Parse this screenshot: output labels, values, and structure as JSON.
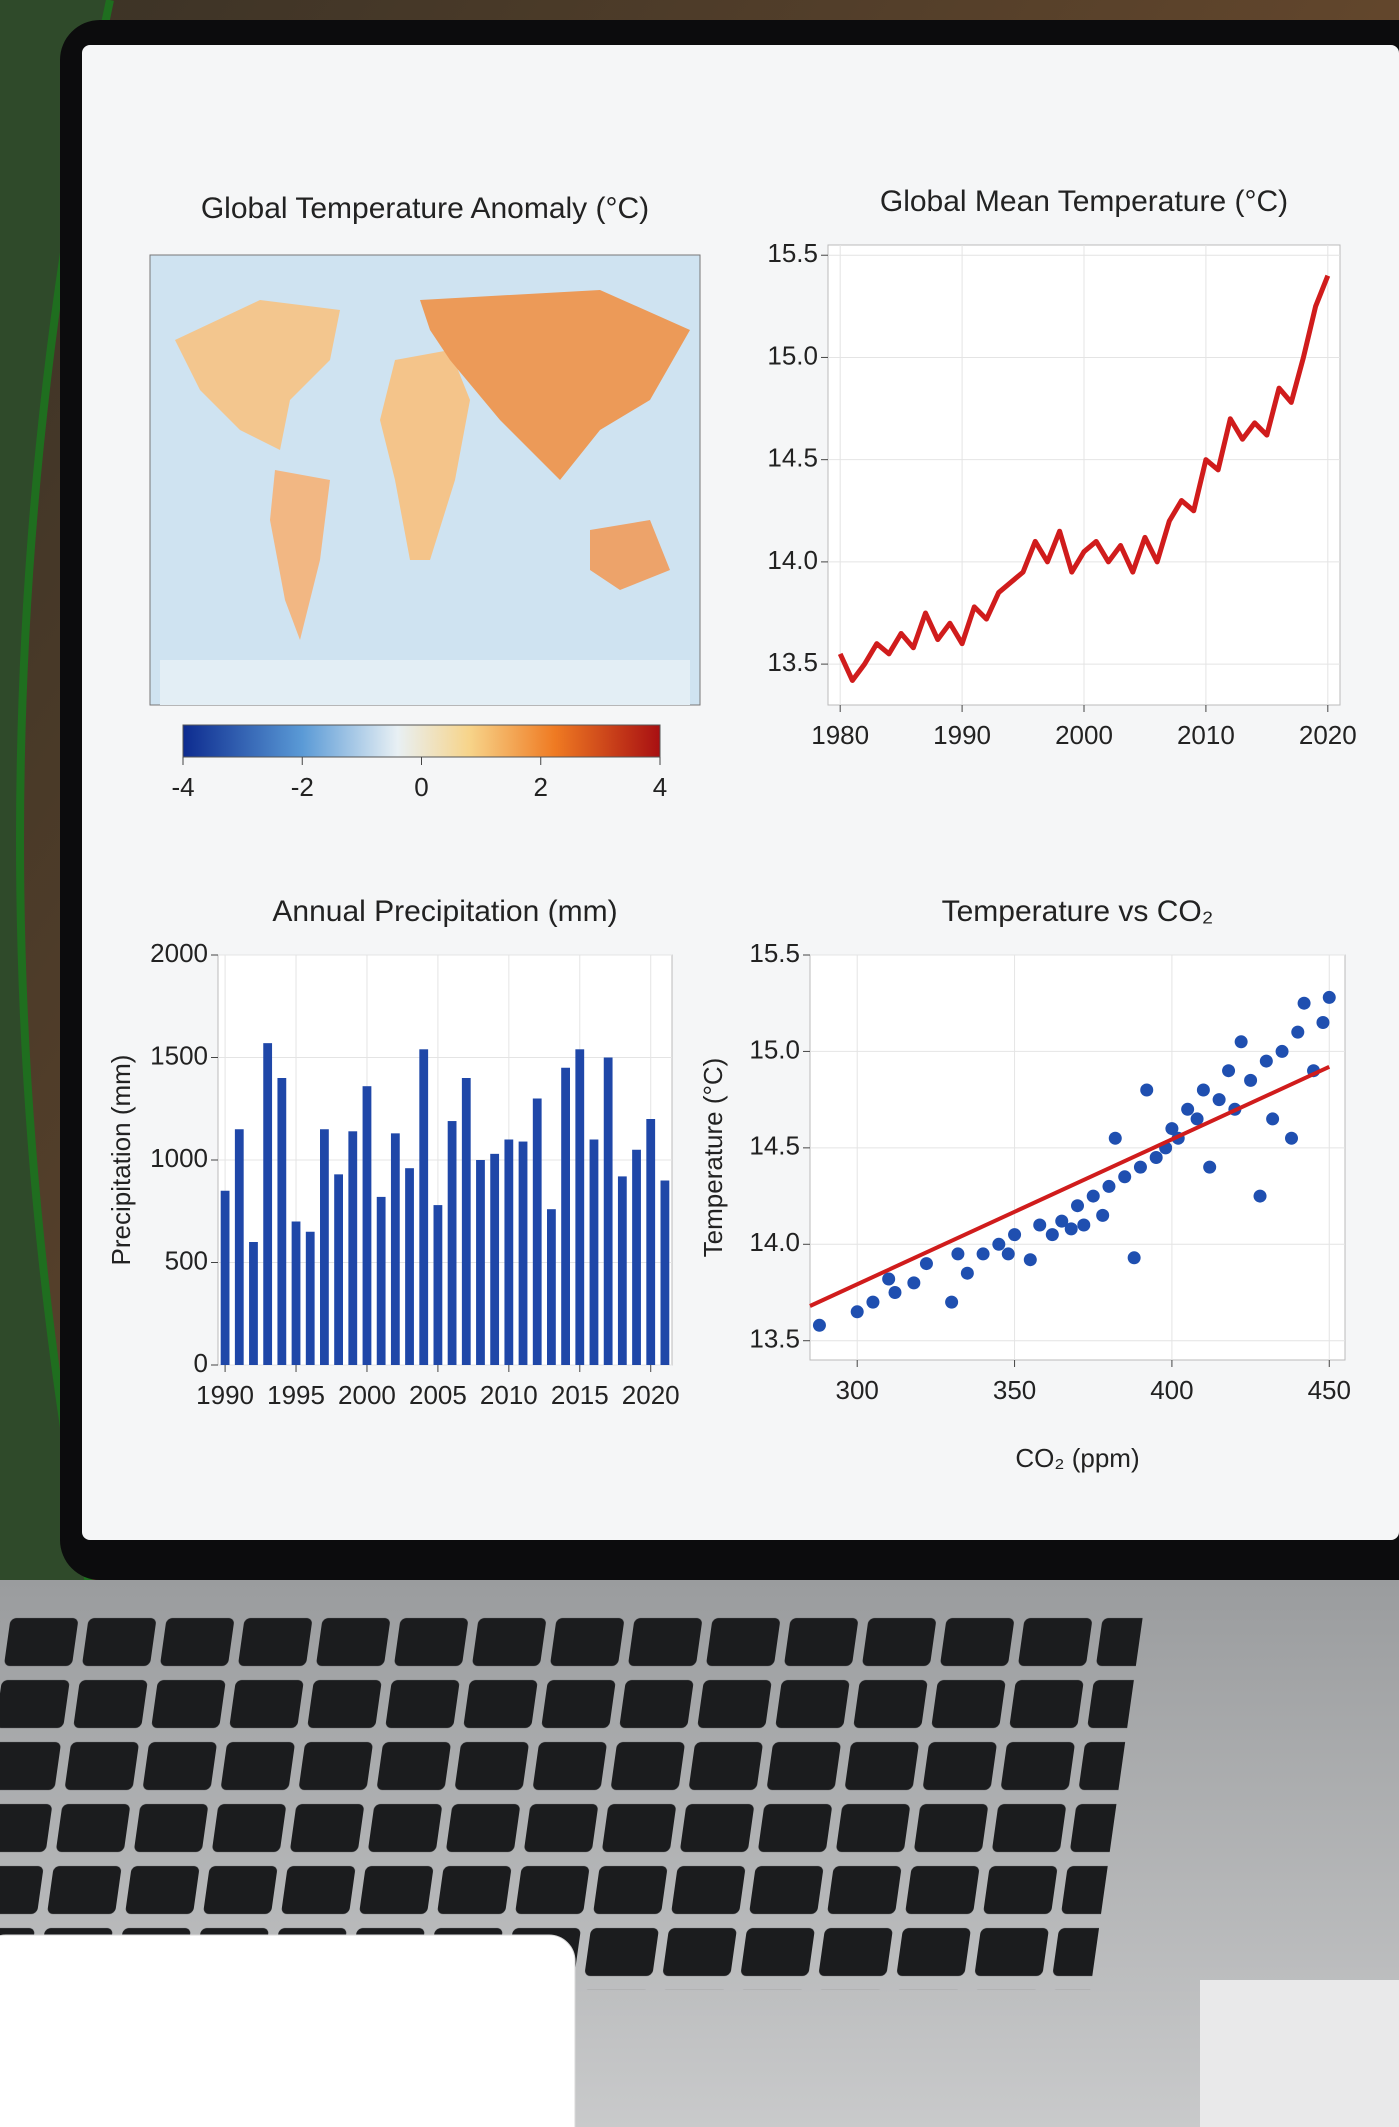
{
  "chart_data": [
    {
      "type": "map",
      "title": "Global Temperature Anomaly (°C)",
      "xlim": [
        -4,
        4
      ],
      "xticks": [
        -4,
        -2,
        0,
        2,
        4
      ]
    },
    {
      "type": "line",
      "title": "Global Mean Temperature (°C)",
      "color": "#d01c1c",
      "grid": true,
      "x": [
        1980,
        1981,
        1982,
        1983,
        1984,
        1985,
        1986,
        1987,
        1988,
        1989,
        1990,
        1991,
        1992,
        1993,
        1994,
        1995,
        1996,
        1997,
        1998,
        1999,
        2000,
        2001,
        2002,
        2003,
        2004,
        2005,
        2006,
        2007,
        2008,
        2009,
        2010,
        2011,
        2012,
        2013,
        2014,
        2015,
        2016,
        2017,
        2018,
        2019,
        2020
      ],
      "values": [
        13.55,
        13.42,
        13.5,
        13.6,
        13.55,
        13.65,
        13.58,
        13.75,
        13.62,
        13.7,
        13.6,
        13.78,
        13.72,
        13.85,
        13.9,
        13.95,
        14.1,
        14.0,
        14.15,
        13.95,
        14.05,
        14.1,
        14.0,
        14.08,
        13.95,
        14.12,
        14.0,
        14.2,
        14.3,
        14.25,
        14.5,
        14.45,
        14.7,
        14.6,
        14.68,
        14.62,
        14.85,
        14.78,
        15.0,
        15.25,
        15.4
      ],
      "xlim": [
        1979,
        2021
      ],
      "xticks": [
        1980,
        1990,
        2000,
        2010,
        2020
      ],
      "ylim": [
        13.3,
        15.55
      ],
      "yticks": [
        13.5,
        {
          "value": 14,
          "label": "14.0"
        },
        14.5,
        {
          "value": 15,
          "label": "15.0"
        },
        15.5
      ]
    },
    {
      "type": "bar",
      "title": "Annual Precipitation (mm)",
      "ylabel": "Precipitation (mm)",
      "color": "#1f47a8",
      "grid": true,
      "x": [
        1990,
        1991,
        1992,
        1993,
        1994,
        1995,
        1996,
        1997,
        1998,
        1999,
        2000,
        2001,
        2002,
        2003,
        2004,
        2005,
        2006,
        2007,
        2008,
        2009,
        2010,
        2011,
        2012,
        2013,
        2014,
        2015,
        2016,
        2017,
        2018,
        2019,
        2020,
        2021
      ],
      "values": [
        850,
        1150,
        600,
        1570,
        1400,
        700,
        650,
        1150,
        930,
        1140,
        1360,
        820,
        1130,
        960,
        1540,
        780,
        1190,
        1400,
        1000,
        1030,
        1100,
        1090,
        1300,
        760,
        1450,
        1540,
        1100,
        1500,
        920,
        1050,
        1200,
        900
      ],
      "xlim": [
        1989.5,
        2021.5
      ],
      "xticks": [
        1990,
        1995,
        2000,
        2005,
        2010,
        2015,
        2020
      ],
      "ylim": [
        0,
        2000
      ],
      "yticks": [
        0,
        500,
        1000,
        1500,
        2000
      ]
    },
    {
      "type": "scatter",
      "title": "Temperature vs CO₂",
      "xlabel": "CO₂ (ppm)",
      "ylabel": "Temperature (°C)",
      "color": "#1f4fb0",
      "grid": true,
      "x": [
        288,
        300,
        305,
        310,
        312,
        318,
        322,
        330,
        332,
        335,
        340,
        345,
        348,
        350,
        355,
        358,
        362,
        365,
        368,
        370,
        372,
        375,
        378,
        380,
        382,
        385,
        388,
        390,
        392,
        395,
        398,
        400,
        402,
        405,
        408,
        410,
        412,
        415,
        418,
        420,
        422,
        425,
        428,
        430,
        432,
        435,
        438,
        440,
        442,
        445,
        448,
        450
      ],
      "values": [
        13.58,
        13.65,
        13.7,
        13.82,
        13.75,
        13.8,
        13.9,
        13.7,
        13.95,
        13.85,
        13.95,
        14.0,
        13.95,
        14.05,
        13.92,
        14.1,
        14.05,
        14.12,
        14.08,
        14.2,
        14.1,
        14.25,
        14.15,
        14.3,
        14.55,
        14.35,
        13.93,
        14.4,
        14.8,
        14.45,
        14.5,
        14.6,
        14.55,
        14.7,
        14.65,
        14.8,
        14.4,
        14.75,
        14.9,
        14.7,
        15.05,
        14.85,
        14.25,
        14.95,
        14.65,
        15.0,
        14.55,
        15.1,
        15.25,
        14.9,
        15.15,
        15.28
      ],
      "trendline": {
        "x": [
          285,
          450
        ],
        "values": [
          13.68,
          14.92
        ],
        "color": "#d01c1c"
      },
      "xlim": [
        285,
        455
      ],
      "xticks": [
        300,
        350,
        400,
        450
      ],
      "ylim": [
        13.4,
        15.5
      ],
      "yticks": [
        13.5,
        {
          "value": 14,
          "label": "14.0"
        },
        14.5,
        {
          "value": 15,
          "label": "15.0"
        },
        15.5
      ]
    }
  ]
}
